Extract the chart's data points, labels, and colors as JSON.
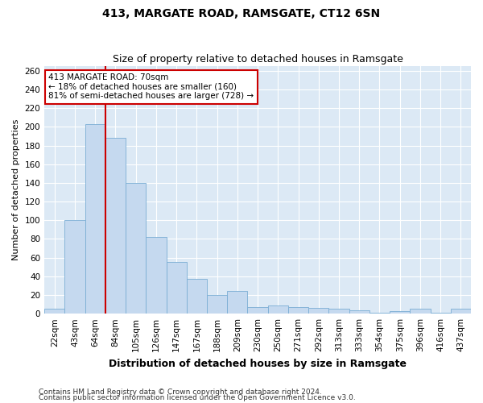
{
  "title": "413, MARGATE ROAD, RAMSGATE, CT12 6SN",
  "subtitle": "Size of property relative to detached houses in Ramsgate",
  "xlabel": "Distribution of detached houses by size in Ramsgate",
  "ylabel": "Number of detached properties",
  "bar_color": "#c5d9ef",
  "bar_edge_color": "#7aadd4",
  "background_color": "#dce9f5",
  "grid_color": "#ffffff",
  "categories": [
    "22sqm",
    "43sqm",
    "64sqm",
    "84sqm",
    "105sqm",
    "126sqm",
    "147sqm",
    "167sqm",
    "188sqm",
    "209sqm",
    "230sqm",
    "250sqm",
    "271sqm",
    "292sqm",
    "313sqm",
    "333sqm",
    "354sqm",
    "375sqm",
    "396sqm",
    "416sqm",
    "437sqm"
  ],
  "values": [
    5,
    100,
    203,
    188,
    140,
    82,
    55,
    37,
    20,
    24,
    7,
    9,
    7,
    6,
    5,
    4,
    1,
    3,
    5,
    1,
    5
  ],
  "red_line_x": 2.5,
  "annotation_line1": "413 MARGATE ROAD: 70sqm",
  "annotation_line2": "← 18% of detached houses are smaller (160)",
  "annotation_line3": "81% of semi-detached houses are larger (728) →",
  "annotation_box_color": "#ffffff",
  "annotation_box_edge_color": "#cc0000",
  "red_line_color": "#cc0000",
  "ylim": [
    0,
    265
  ],
  "yticks": [
    0,
    20,
    40,
    60,
    80,
    100,
    120,
    140,
    160,
    180,
    200,
    220,
    240,
    260
  ],
  "footnote1": "Contains HM Land Registry data © Crown copyright and database right 2024.",
  "footnote2": "Contains public sector information licensed under the Open Government Licence v3.0.",
  "title_fontsize": 10,
  "subtitle_fontsize": 9,
  "tick_fontsize": 7.5,
  "ylabel_fontsize": 8,
  "xlabel_fontsize": 9,
  "footnote_fontsize": 6.5
}
